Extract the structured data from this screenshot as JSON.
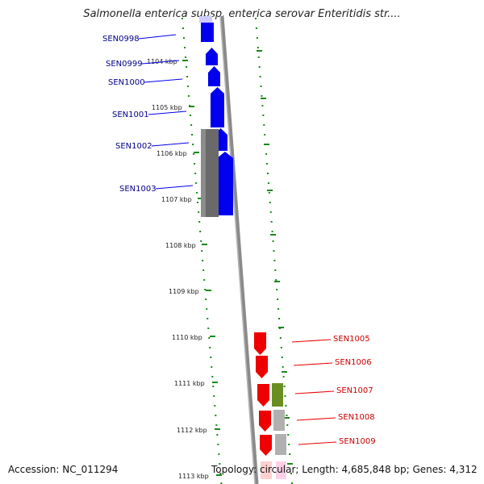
{
  "title": "Salmonella enterica subsp. enterica serovar Enteritidis str....",
  "footer": {
    "accession": "Accession: NC_011294",
    "summary": "Topology: circular; Length: 4,685,848 bp; Genes: 4,312"
  },
  "colors": {
    "scale_dots": "#1a8a1a",
    "left_genes": "#0000ee",
    "left_labels": "#00008b",
    "right_genes": "#ee0000",
    "right_labels": "#cc0000",
    "backbone": "#8a8a8a",
    "olive": "#6b8e23"
  },
  "scale_ticks": [
    "1104 kbp",
    "1105 kbp",
    "1106 kbp",
    "1107 kbp",
    "1108 kbp",
    "1109 kbp",
    "1110 kbp",
    "1111 kbp",
    "1112 kbp",
    "1113 kbp"
  ],
  "left_labels": [
    "SEN0998",
    "SEN0999",
    "SEN1000",
    "SEN1001",
    "SEN1002",
    "SEN1003"
  ],
  "right_labels": [
    "SEN1005",
    "SEN1006",
    "SEN1007",
    "SEN1008",
    "SEN1009"
  ]
}
